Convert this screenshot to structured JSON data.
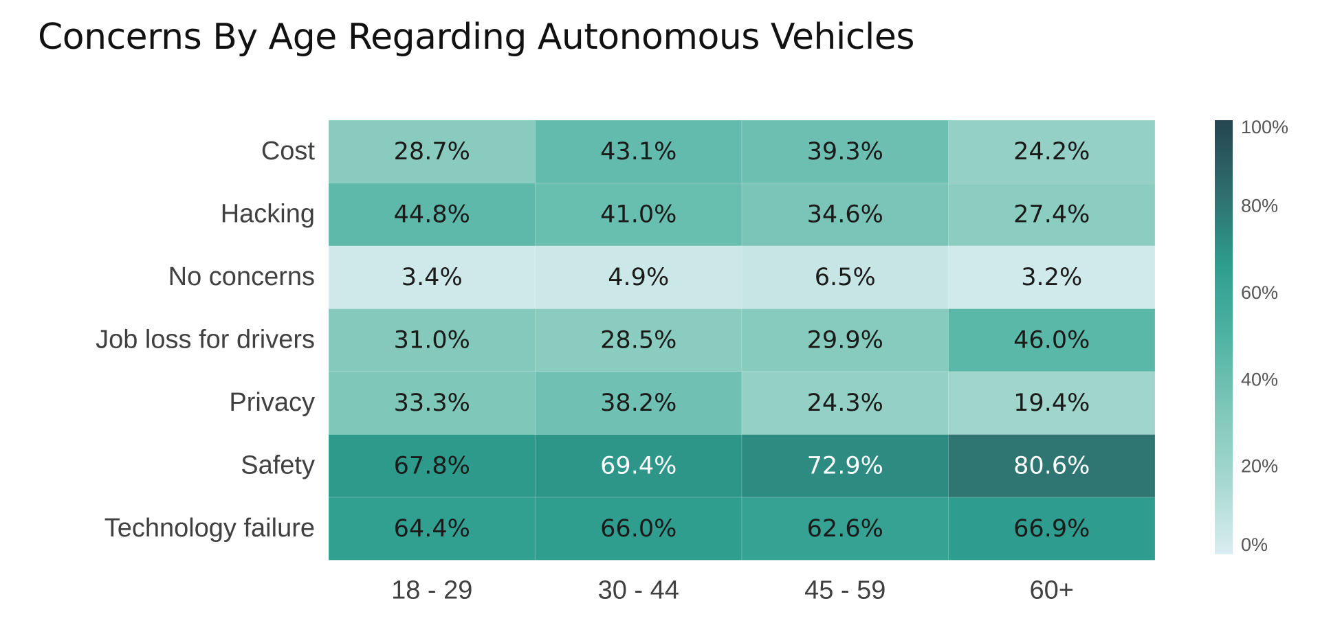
{
  "chart_data": {
    "type": "heatmap",
    "title": "Concerns By Age Regarding Autonomous Vehicles",
    "categories_x": [
      "18 - 29",
      "30 - 44",
      "45 - 59",
      "60+"
    ],
    "categories_y": [
      "Cost",
      "Hacking",
      "No concerns",
      "Job loss for drivers",
      "Privacy",
      "Safety",
      "Technology failure"
    ],
    "values": [
      [
        28.7,
        43.1,
        39.3,
        24.2
      ],
      [
        44.8,
        41.0,
        34.6,
        27.4
      ],
      [
        3.4,
        4.9,
        6.5,
        3.2
      ],
      [
        31.0,
        28.5,
        29.9,
        46.0
      ],
      [
        33.3,
        38.2,
        24.3,
        19.4
      ],
      [
        67.8,
        69.4,
        72.9,
        80.6
      ],
      [
        64.4,
        66.0,
        62.6,
        66.9
      ]
    ],
    "value_labels": [
      [
        "28.7%",
        "43.1%",
        "39.3%",
        "24.2%"
      ],
      [
        "44.8%",
        "41.0%",
        "34.6%",
        "27.4%"
      ],
      [
        "3.4%",
        "4.9%",
        "6.5%",
        "3.2%"
      ],
      [
        "31.0%",
        "28.5%",
        "29.9%",
        "46.0%"
      ],
      [
        "33.3%",
        "38.2%",
        "24.3%",
        "19.4%"
      ],
      [
        "67.8%",
        "69.4%",
        "72.9%",
        "80.6%"
      ],
      [
        "64.4%",
        "66.0%",
        "62.6%",
        "66.9%"
      ]
    ],
    "value_range": [
      0,
      100
    ],
    "colorbar": {
      "ticks": [
        "0%",
        "20%",
        "40%",
        "60%",
        "80%",
        "100%"
      ],
      "tick_values": [
        0,
        20,
        40,
        60,
        80,
        100
      ],
      "placement": "right"
    },
    "color_scale": [
      "#daedf2",
      "#a6d8cf",
      "#7ec7b9",
      "#4fb3a3",
      "#2e9d8e",
      "#2f6e6e",
      "#24454f"
    ]
  }
}
